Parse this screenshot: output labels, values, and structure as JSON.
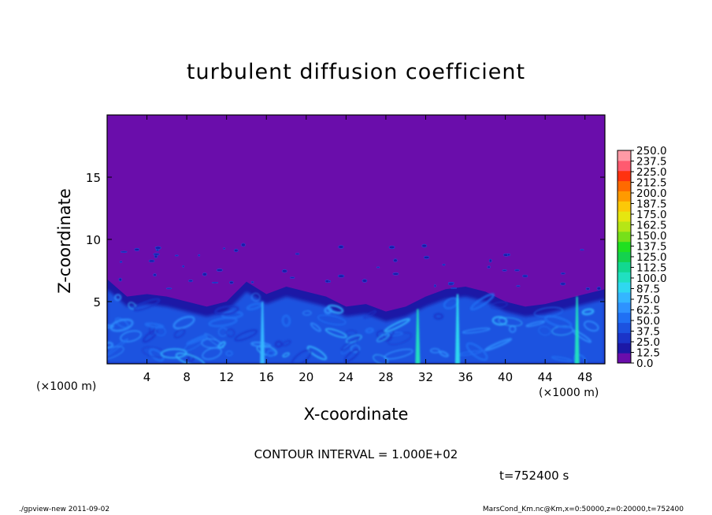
{
  "chart_data": {
    "type": "heatmap",
    "title": "turbulent diffusion coefficient",
    "xlabel": "X-coordinate",
    "ylabel": "Z-coordinate",
    "x_unit_label": "(×1000 m)",
    "xlim": [
      0,
      50
    ],
    "ylim": [
      0,
      20
    ],
    "x_ticks": [
      4,
      8,
      12,
      16,
      20,
      24,
      28,
      32,
      36,
      40,
      44,
      48
    ],
    "y_ticks": [
      5,
      10,
      15
    ],
    "colorbar": {
      "levels": [
        0.0,
        12.5,
        25.0,
        37.5,
        50.0,
        62.5,
        75.0,
        87.5,
        100.0,
        112.5,
        125.0,
        137.5,
        150.0,
        162.5,
        175.0,
        187.5,
        200.0,
        212.5,
        225.0,
        237.5,
        250.0
      ],
      "labels": [
        "0.0",
        "12.5",
        "25.0",
        "37.5",
        "50.0",
        "62.5",
        "75.0",
        "87.5",
        "100.0",
        "112.5",
        "125.0",
        "137.5",
        "150.0",
        "162.5",
        "175.0",
        "187.5",
        "200.0",
        "212.5",
        "225.0",
        "237.5",
        "250.0"
      ],
      "colors": [
        "#6a0dab",
        "#1c18a6",
        "#1b34c8",
        "#1c52e0",
        "#2070f4",
        "#2e92ff",
        "#34b6ff",
        "#2fd8f0",
        "#20e0c0",
        "#12d890",
        "#14d24e",
        "#20e020",
        "#76e01a",
        "#b6e616",
        "#e6e610",
        "#fcc808",
        "#ff9a00",
        "#ff6a00",
        "#ff3210",
        "#ff5a70",
        "#ff9aa6"
      ]
    },
    "background_color": "#6a0dab",
    "boundary_layer_top": [
      [
        0,
        6.8
      ],
      [
        2,
        5.4
      ],
      [
        4,
        5.6
      ],
      [
        6,
        5.4
      ],
      [
        8,
        5.0
      ],
      [
        10,
        4.6
      ],
      [
        12,
        5.0
      ],
      [
        14,
        6.6
      ],
      [
        16,
        5.6
      ],
      [
        18,
        6.2
      ],
      [
        20,
        5.8
      ],
      [
        22,
        5.4
      ],
      [
        24,
        4.6
      ],
      [
        26,
        4.8
      ],
      [
        28,
        4.2
      ],
      [
        30,
        4.6
      ],
      [
        32,
        5.4
      ],
      [
        34,
        6.0
      ],
      [
        36,
        6.2
      ],
      [
        38,
        5.8
      ],
      [
        40,
        5.0
      ],
      [
        42,
        4.6
      ],
      [
        44,
        4.8
      ],
      [
        46,
        5.2
      ],
      [
        48,
        5.6
      ],
      [
        50,
        6.0
      ]
    ],
    "bright_plumes": [
      {
        "x": 15.6,
        "top": 5.0,
        "value": 75.0
      },
      {
        "x": 35.2,
        "top": 5.6,
        "value": 87.5
      },
      {
        "x": 31.2,
        "top": 4.4,
        "value": 100.0
      },
      {
        "x": 47.2,
        "top": 5.4,
        "value": 100.0
      }
    ]
  },
  "annotations": {
    "contour_interval": "CONTOUR INTERVAL = 1.000E+02",
    "time": "t=752400  s",
    "footer_left": "./gpview-new   2011-09-02",
    "footer_right": "MarsCond_Km.nc@Km,x=0:50000,z=0:20000,t=752400"
  }
}
